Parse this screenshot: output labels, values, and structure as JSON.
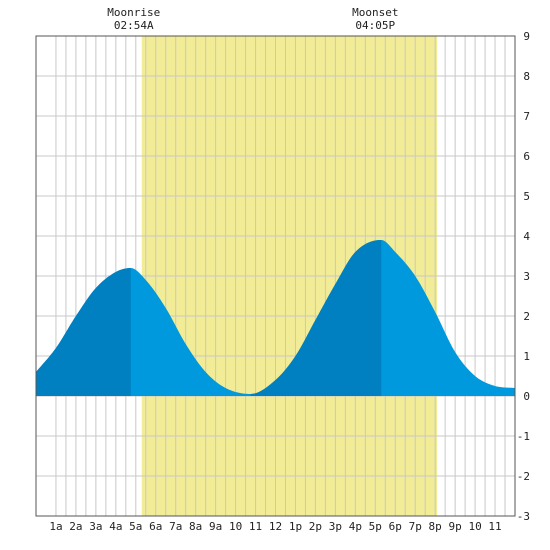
{
  "chart_data": {
    "type": "area",
    "title": "",
    "xlabel": "",
    "ylabel": "",
    "xlim": [
      0,
      24
    ],
    "ylim": [
      -3,
      9
    ],
    "yticks": [
      -3,
      -2,
      -1,
      0,
      1,
      2,
      3,
      4,
      5,
      6,
      7,
      8,
      9
    ],
    "grid": true,
    "x_tick_labels": [
      "1a",
      "2a",
      "3a",
      "4a",
      "5a",
      "6a",
      "7a",
      "8a",
      "9a",
      "10",
      "11",
      "12",
      "1p",
      "2p",
      "3p",
      "4p",
      "5p",
      "6p",
      "7p",
      "8p",
      "9p",
      "10",
      "11"
    ],
    "x_tick_hours": [
      1,
      2,
      3,
      4,
      5,
      6,
      7,
      8,
      9,
      10,
      11,
      12,
      13,
      14,
      15,
      16,
      17,
      18,
      19,
      20,
      21,
      22,
      23
    ],
    "daylight_hours": [
      5.3,
      20.1
    ],
    "tide_points": {
      "x": [
        0,
        1,
        2,
        3,
        4,
        4.75,
        5.5,
        6.5,
        7.5,
        8.5,
        9.5,
        10.75,
        12,
        13,
        14,
        15,
        16,
        17.3,
        18,
        19,
        20,
        21,
        22,
        23,
        24
      ],
      "y": [
        0.6,
        1.2,
        2.0,
        2.7,
        3.1,
        3.2,
        2.9,
        2.2,
        1.3,
        0.6,
        0.2,
        0.05,
        0.4,
        1.0,
        1.9,
        2.8,
        3.6,
        3.9,
        3.6,
        3.0,
        2.1,
        1.1,
        0.5,
        0.25,
        0.2
      ]
    },
    "dark_ranges": [
      [
        0,
        4.75
      ],
      [
        10.75,
        17.3
      ]
    ],
    "colors": {
      "daylight": "#f2ec96",
      "tide_dark": "#0080c0",
      "tide_light": "#0099dd",
      "grid": "#c8c8c8",
      "border": "#555555"
    },
    "annotations": [
      {
        "hour": 4.9,
        "title": "Moonrise",
        "time": "02:54A"
      },
      {
        "hour": 17.0,
        "title": "Moonset",
        "time": "04:05P"
      }
    ]
  }
}
